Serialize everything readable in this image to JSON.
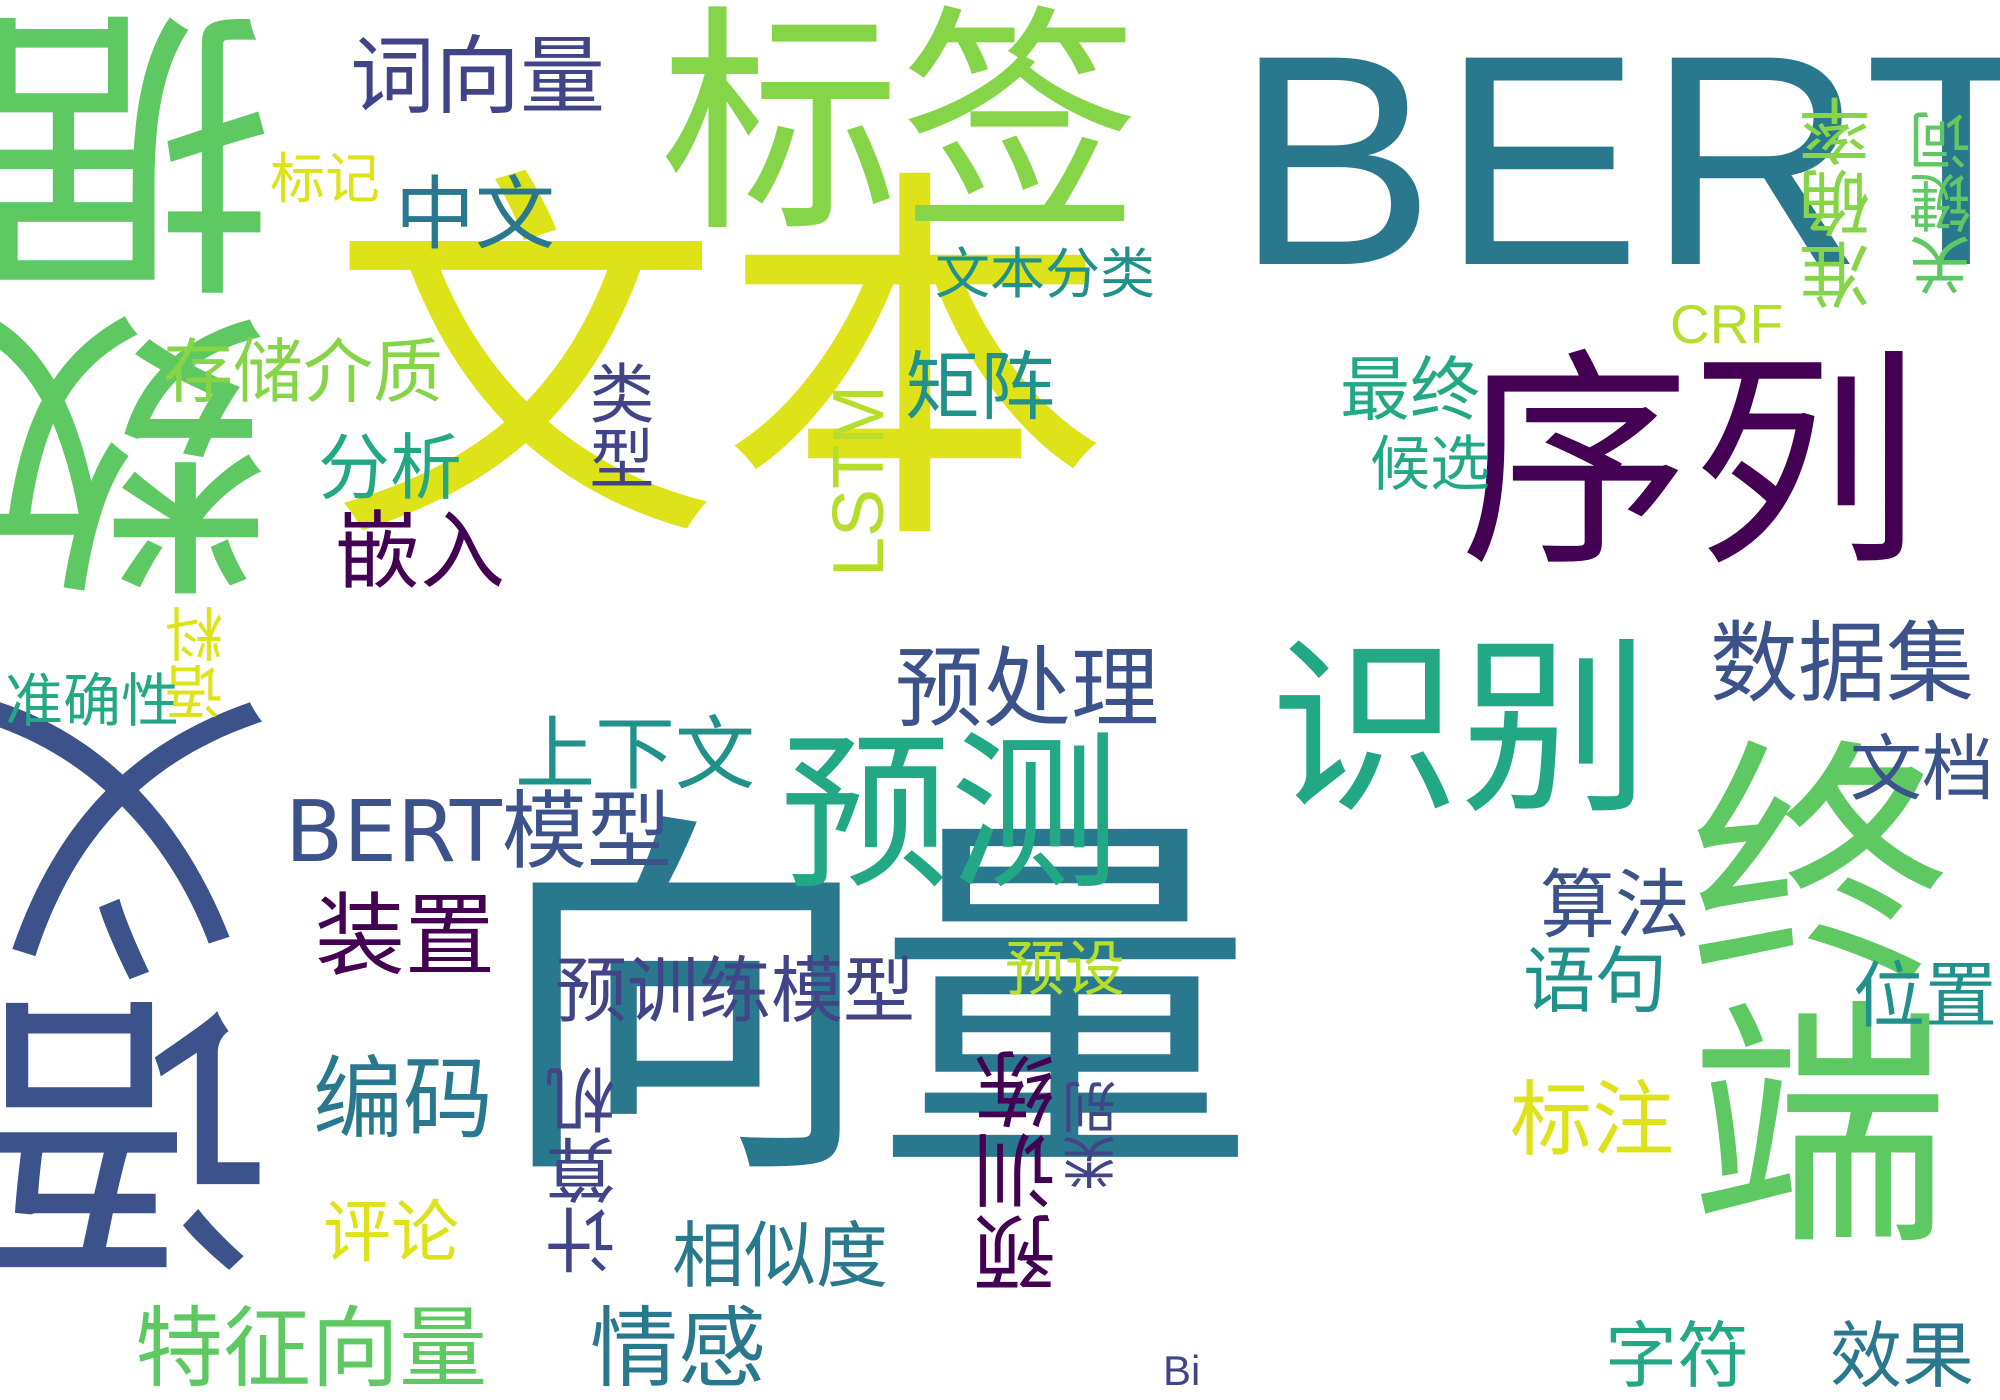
{
  "palette": {
    "yellow": "#dde318",
    "light_green": "#86d549",
    "green": "#5ec962",
    "teal": "#21918c",
    "blue_teal": "#2a788e",
    "blue": "#3b528b",
    "indigo": "#414487",
    "purple": "#440154",
    "yellow_green": "#b5de2b",
    "mint": "#22a884"
  },
  "words": [
    {
      "id": "w-wenben",
      "text": "文本",
      "color": "#dde318"
    },
    {
      "id": "w-xiangliang-big",
      "text": "向量",
      "color": "#2a788e"
    },
    {
      "id": "w-bert",
      "text": "BERT",
      "color": "#2a788e"
    },
    {
      "id": "w-biaoqian",
      "text": "标签",
      "color": "#86d549"
    },
    {
      "id": "w-shuju",
      "text": "数据",
      "color": "#5ec962"
    },
    {
      "id": "w-yuyi",
      "text": "语义",
      "color": "#3b528b"
    },
    {
      "id": "w-zhongduan",
      "text": "终端",
      "color": "#5ec962"
    },
    {
      "id": "w-xulie",
      "text": "序列",
      "color": "#440154"
    },
    {
      "id": "w-shibie",
      "text": "识别",
      "color": "#22a884"
    },
    {
      "id": "w-yuce",
      "text": "预测",
      "color": "#22a884"
    },
    {
      "id": "w-ciyiangliang",
      "text": "词向量",
      "color": "#414487"
    },
    {
      "id": "w-zhongwen",
      "text": "中文",
      "color": "#2a788e"
    },
    {
      "id": "w-biaoji",
      "text": "标记",
      "color": "#dde318"
    },
    {
      "id": "w-wenbenfenlei",
      "text": "文本分类",
      "color": "#21918c"
    },
    {
      "id": "w-zhunquelv",
      "text": "准确率",
      "color": "#86d549"
    },
    {
      "id": "w-guanjianci",
      "text": "关键词",
      "color": "#5ec962"
    },
    {
      "id": "w-crf",
      "text": "CRF",
      "color": "#b5de2b"
    },
    {
      "id": "w-cunchu",
      "text": "存储介质",
      "color": "#86d549"
    },
    {
      "id": "w-leixing",
      "text": "类型",
      "color": "#414487"
    },
    {
      "id": "w-juzhen",
      "text": "矩阵",
      "color": "#21918c"
    },
    {
      "id": "w-zuizhong",
      "text": "最终",
      "color": "#22a884"
    },
    {
      "id": "w-fenxi",
      "text": "分析",
      "color": "#22a884"
    },
    {
      "id": "w-lstm",
      "text": "LSTM",
      "color": "#b5de2b"
    },
    {
      "id": "w-houxuan",
      "text": "候选",
      "color": "#22a884"
    },
    {
      "id": "w-qianru",
      "text": "嵌入",
      "color": "#440154"
    },
    {
      "id": "w-shujuji",
      "text": "数据集",
      "color": "#3b528b"
    },
    {
      "id": "w-yuchuli",
      "text": "预处理",
      "color": "#3b528b"
    },
    {
      "id": "w-yuliao",
      "text": "语料",
      "color": "#dde318"
    },
    {
      "id": "w-zhunquexing",
      "text": "准确性",
      "color": "#22a884"
    },
    {
      "id": "w-shangxiawen",
      "text": "上下文",
      "color": "#21918c"
    },
    {
      "id": "w-wendang",
      "text": "文档",
      "color": "#3b528b"
    },
    {
      "id": "w-bertmoxing",
      "text": "BERT模型",
      "color": "#3b528b"
    },
    {
      "id": "w-suanfa",
      "text": "算法",
      "color": "#3b528b"
    },
    {
      "id": "w-zhuangzhi",
      "text": "装置",
      "color": "#440154"
    },
    {
      "id": "w-yushe",
      "text": "预设",
      "color": "#b5de2b"
    },
    {
      "id": "w-yuju",
      "text": "语句",
      "color": "#21918c"
    },
    {
      "id": "w-weizhi",
      "text": "位置",
      "color": "#21918c"
    },
    {
      "id": "w-yuxunlianmoxing",
      "text": "预训练模型",
      "color": "#414487"
    },
    {
      "id": "w-bianma",
      "text": "编码",
      "color": "#2a788e"
    },
    {
      "id": "w-yuxunlian",
      "text": "预训练",
      "color": "#440154"
    },
    {
      "id": "w-leibie",
      "text": "类别",
      "color": "#414487"
    },
    {
      "id": "w-jisuanji",
      "text": "计算机",
      "color": "#414487"
    },
    {
      "id": "w-biaozhu",
      "text": "标注",
      "color": "#dde318"
    },
    {
      "id": "w-pinglun",
      "text": "评论",
      "color": "#dde318"
    },
    {
      "id": "w-xiangsidu",
      "text": "相似度",
      "color": "#2a788e"
    },
    {
      "id": "w-tezheng",
      "text": "特征向量",
      "color": "#5ec962"
    },
    {
      "id": "w-qinggan",
      "text": "情感",
      "color": "#2a788e"
    },
    {
      "id": "w-zifu",
      "text": "字符",
      "color": "#22a884"
    },
    {
      "id": "w-xiaoguo",
      "text": "效果",
      "color": "#2a788e"
    },
    {
      "id": "w-bi",
      "text": "Bi",
      "color": "#414487"
    }
  ]
}
